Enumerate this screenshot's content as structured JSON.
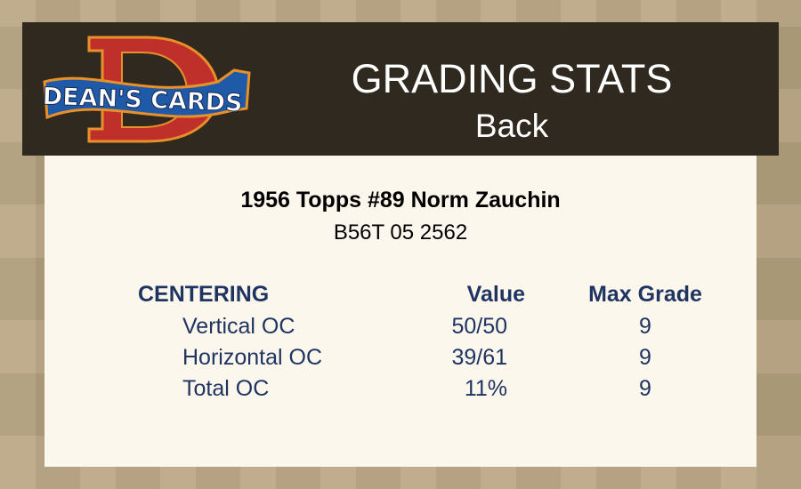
{
  "header": {
    "logo_text": "DEAN'S CARDS",
    "title": "GRADING STATS",
    "subtitle": "Back"
  },
  "card": {
    "name": "1956 Topps #89 Norm Zauchin",
    "code": "B56T 05 2562"
  },
  "table": {
    "section": "CENTERING",
    "col_value": "Value",
    "col_max": "Max Grade",
    "rows": [
      {
        "label": "Vertical OC",
        "value": "50/50",
        "max": "9"
      },
      {
        "label": "Horizontal OC",
        "value": "39/61",
        "max": "9"
      },
      {
        "label": "Total OC",
        "value": "11%",
        "max": "9"
      }
    ]
  },
  "colors": {
    "header_bg": "#2f2920",
    "panel_bg": "#fcf7ed",
    "text_navy": "#1f3461",
    "logo_red": "#c0302a",
    "logo_blue": "#1f5aa8"
  }
}
